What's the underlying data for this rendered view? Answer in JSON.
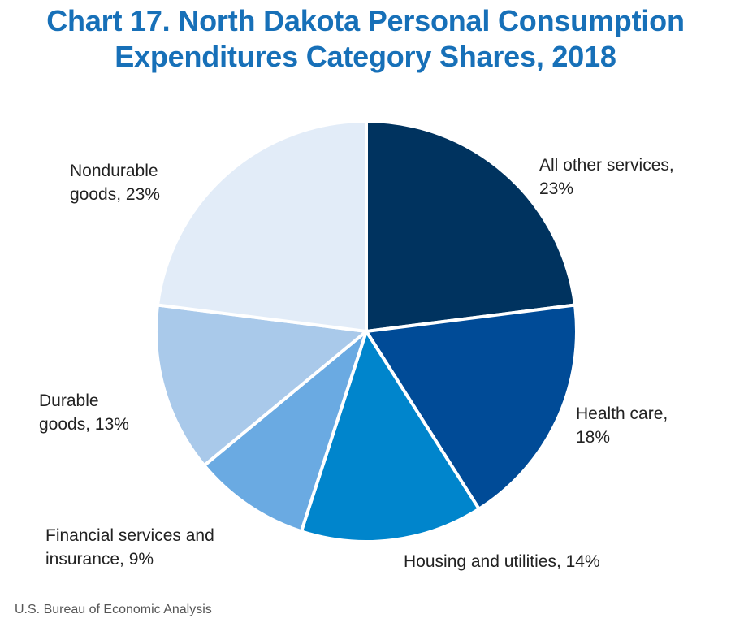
{
  "header": {
    "title_line1": "Chart 17. North Dakota Personal Consumption",
    "title_line2": "Expenditures Category Shares, 2018"
  },
  "footer": {
    "source": "U.S. Bureau of Economic Analysis"
  },
  "chart_data": {
    "type": "pie",
    "title": "Chart 17. North Dakota Personal Consumption Expenditures Category Shares, 2018",
    "unit": "%",
    "start": "12 o'clock, clockwise",
    "slices": [
      {
        "name": "All other services",
        "value": 23,
        "color": "#00335f",
        "label_lines": [
          "All other services,",
          "23%"
        ]
      },
      {
        "name": "Health care",
        "value": 18,
        "color": "#004b97",
        "label_lines": [
          "Health care,",
          "18%"
        ]
      },
      {
        "name": "Housing and utilities",
        "value": 14,
        "color": "#0085cc",
        "label_lines": [
          "Housing and utilities, 14%"
        ]
      },
      {
        "name": "Financial services and insurance",
        "value": 9,
        "color": "#6aaae2",
        "label_lines": [
          "Financial services and",
          "insurance, 9%"
        ]
      },
      {
        "name": "Durable goods",
        "value": 13,
        "color": "#a9c9ea",
        "label_lines": [
          "Durable",
          "goods, 13%"
        ]
      },
      {
        "name": "Nondurable goods",
        "value": 23,
        "color": "#e2ecf8",
        "label_lines": [
          "Nondurable",
          "goods, 23%"
        ]
      }
    ]
  }
}
